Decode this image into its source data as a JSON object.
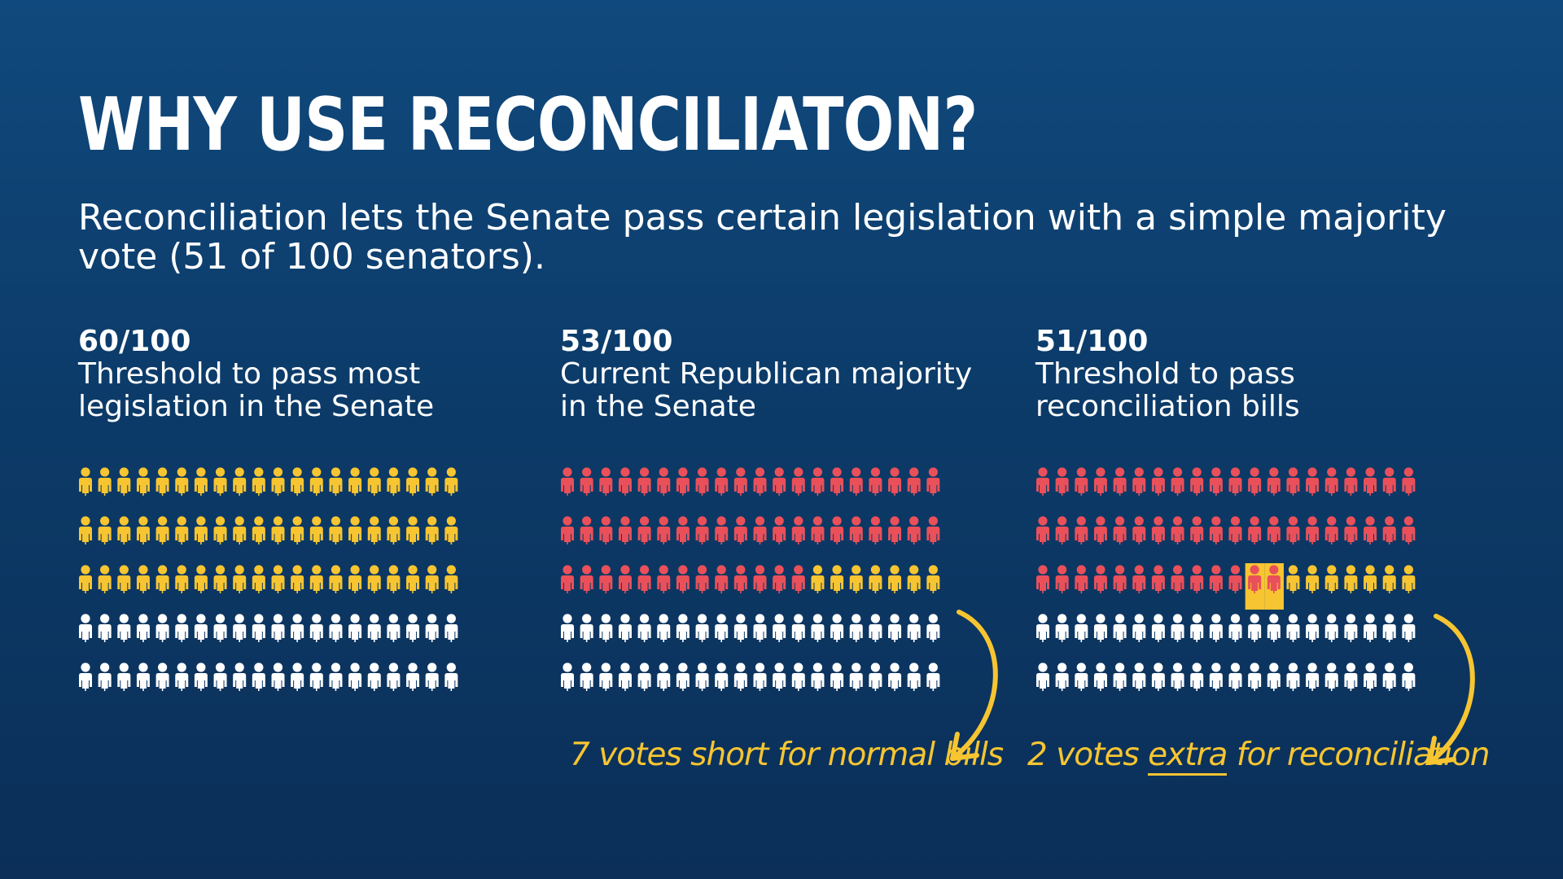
{
  "title": "WHY USE RECONCILIATON?",
  "subtitle": "Reconciliation lets the Senate pass certain legislation with a simple majority vote (51 of 100 senators).",
  "colors": {
    "background": "#0c3b69",
    "threshold_yellow": "#f7c531",
    "republican_red": "#e9505a",
    "other_white": "#ffffff"
  },
  "panels": [
    {
      "value": "60/100",
      "caption": "Threshold to pass most legislation in the Senate",
      "grid": {
        "total": 100,
        "per_row": 20,
        "yellow": 60,
        "red": 0,
        "highlight_start": null,
        "highlight_count": 0
      }
    },
    {
      "value": "53/100",
      "caption": "Current Republican majority in the Senate",
      "grid": {
        "total": 100,
        "per_row": 20,
        "yellow": 60,
        "red": 53,
        "highlight_start": null,
        "highlight_count": 0
      }
    },
    {
      "value": "51/100",
      "caption": "Threshold to pass reconciliation bills",
      "grid": {
        "total": 100,
        "per_row": 20,
        "yellow": 60,
        "red": 53,
        "highlight_start": 51,
        "highlight_count": 2
      }
    }
  ],
  "notes": {
    "short": "7 votes short for normal bills",
    "extra_prefix": "2 votes ",
    "extra_emph": "extra",
    "extra_suffix": " for reconciliation"
  }
}
